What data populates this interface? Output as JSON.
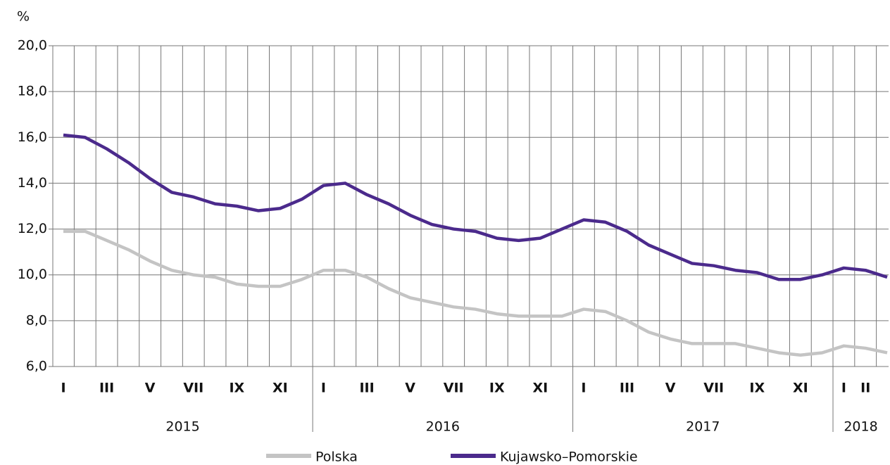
{
  "chart_data": {
    "type": "line",
    "unit_label": "%",
    "categories": [
      "I",
      null,
      "III",
      null,
      "V",
      null,
      "VII",
      null,
      "IX",
      null,
      "XI",
      null,
      "I",
      null,
      "III",
      null,
      "V",
      null,
      "VII",
      null,
      "IX",
      null,
      "XI",
      null,
      "I",
      null,
      "III",
      null,
      "V",
      null,
      "VII",
      null,
      "IX",
      null,
      "XI",
      null,
      "I",
      "II",
      null
    ],
    "groups": [
      {
        "label": "2015",
        "months": 12
      },
      {
        "label": "2016",
        "months": 12
      },
      {
        "label": "2017",
        "months": 12
      },
      {
        "label": "2018",
        "months": 3
      }
    ],
    "series": [
      {
        "name": "Polska",
        "color": "#c4c4c4",
        "values": [
          11.9,
          11.9,
          11.5,
          11.1,
          10.6,
          10.2,
          10.0,
          9.9,
          9.6,
          9.5,
          9.5,
          9.8,
          10.2,
          10.2,
          9.9,
          9.4,
          9.0,
          8.8,
          8.6,
          8.5,
          8.3,
          8.2,
          8.2,
          8.2,
          8.5,
          8.4,
          8.0,
          7.5,
          7.2,
          7.0,
          7.0,
          7.0,
          6.8,
          6.6,
          6.5,
          6.6,
          6.9,
          6.8,
          6.6
        ]
      },
      {
        "name": "Kujawsko–Pomorskie",
        "color": "#4b2a8c",
        "values": [
          16.1,
          16.0,
          15.5,
          14.9,
          14.2,
          13.6,
          13.4,
          13.1,
          13.0,
          12.8,
          12.9,
          13.3,
          13.9,
          14.0,
          13.5,
          13.1,
          12.6,
          12.2,
          12.0,
          11.9,
          11.6,
          11.5,
          11.6,
          12.0,
          12.4,
          12.3,
          11.9,
          11.3,
          10.9,
          10.5,
          10.4,
          10.2,
          10.1,
          9.8,
          9.8,
          10.0,
          10.3,
          10.2,
          9.9
        ]
      }
    ],
    "ylim": [
      6,
      20
    ],
    "yticks": [
      {
        "value": 6,
        "label": "6,0"
      },
      {
        "value": 8,
        "label": "8,0"
      },
      {
        "value": 10,
        "label": "10,0"
      },
      {
        "value": 12,
        "label": "12,0"
      },
      {
        "value": 14,
        "label": "14,0"
      },
      {
        "value": 16,
        "label": "16,0"
      },
      {
        "value": 18,
        "label": "18,0"
      },
      {
        "value": 20,
        "label": "20,0"
      }
    ],
    "grid": true
  }
}
